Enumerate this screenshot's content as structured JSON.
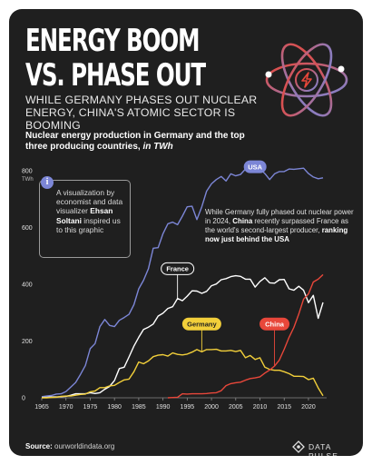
{
  "header": {
    "title_line1": "ENERGY BOOM",
    "title_line2": "VS. PHASE OUT",
    "subtitle": "WHILE GERMANY PHASES OUT NUCLEAR ENERGY, CHINA'S ATOMIC SECTOR IS BOOMING",
    "chart_heading": "Nuclear energy production in Germany and the top three producing countries,",
    "chart_heading_unit": "in TWh"
  },
  "info": {
    "icon_glyph": "i",
    "text_before": "A visualization by economist and data visualizer",
    "author": "Ehsan Soltani",
    "text_after": "inspired us to this graphic"
  },
  "annotation": {
    "text_before": "While Germany fully phased out nuclear power in 2024,",
    "china": "China",
    "text_middle": "recently surpassed France as the world's second-largest producer,",
    "emphasis": "ranking now just behind the USA"
  },
  "footer": {
    "source_label": "Source:",
    "source_text": "ourworldindata.org",
    "brand": "DATA PULSE"
  },
  "colors": {
    "background": "#1f1f1f",
    "usa": "#7c86d6",
    "france": "#ffffff",
    "germany": "#f2cf3a",
    "china": "#e8473a"
  },
  "chart_data": {
    "type": "line",
    "title": "Nuclear energy production in Germany and the top three producing countries, in TWh",
    "ylabel": "TWh",
    "xlim": [
      1965,
      2023
    ],
    "ylim": [
      0,
      800
    ],
    "x_ticks": [
      "1965",
      "1970",
      "1975",
      "1980",
      "1985",
      "1990",
      "1995",
      "2000",
      "2005",
      "2010",
      "2015",
      "2020"
    ],
    "y_ticks": [
      "0",
      "200",
      "400",
      "600",
      "800"
    ],
    "y_unit_label": "TWh",
    "grid": false,
    "series": [
      {
        "name": "USA",
        "color": "#7c86d6",
        "x": [
          1965,
          1966,
          1967,
          1968,
          1969,
          1970,
          1971,
          1972,
          1973,
          1974,
          1975,
          1976,
          1977,
          1978,
          1979,
          1980,
          1981,
          1982,
          1983,
          1984,
          1985,
          1986,
          1987,
          1988,
          1989,
          1990,
          1991,
          1992,
          1993,
          1994,
          1995,
          1996,
          1997,
          1998,
          1999,
          2000,
          2001,
          2002,
          2003,
          2004,
          2005,
          2006,
          2007,
          2008,
          2009,
          2010,
          2011,
          2012,
          2013,
          2014,
          2015,
          2016,
          2017,
          2018,
          2019,
          2020,
          2021,
          2022,
          2023
        ],
        "values": [
          4,
          6,
          8,
          13,
          14,
          22,
          38,
          54,
          83,
          114,
          173,
          191,
          251,
          276,
          255,
          251,
          273,
          283,
          294,
          328,
          384,
          414,
          455,
          527,
          529,
          578,
          613,
          619,
          610,
          640,
          673,
          675,
          628,
          673,
          728,
          754,
          769,
          780,
          764,
          789,
          782,
          787,
          806,
          806,
          799,
          807,
          790,
          769,
          789,
          797,
          797,
          806,
          805,
          807,
          809,
          790,
          778,
          772,
          775
        ]
      },
      {
        "name": "France",
        "color": "#ffffff",
        "x": [
          1965,
          1966,
          1967,
          1968,
          1969,
          1970,
          1971,
          1972,
          1973,
          1974,
          1975,
          1976,
          1977,
          1978,
          1979,
          1980,
          1981,
          1982,
          1983,
          1984,
          1985,
          1986,
          1987,
          1988,
          1989,
          1990,
          1991,
          1992,
          1993,
          1994,
          1995,
          1996,
          1997,
          1998,
          1999,
          2000,
          2001,
          2002,
          2003,
          2004,
          2005,
          2006,
          2007,
          2008,
          2009,
          2010,
          2011,
          2012,
          2013,
          2014,
          2015,
          2016,
          2017,
          2018,
          2019,
          2020,
          2021,
          2022,
          2023
        ],
        "values": [
          1,
          2,
          3,
          3,
          4,
          5,
          9,
          14,
          14,
          14,
          18,
          15,
          18,
          30,
          40,
          61,
          103,
          108,
          144,
          182,
          213,
          241,
          249,
          260,
          288,
          298,
          315,
          321,
          350,
          342,
          358,
          377,
          376,
          368,
          375,
          395,
          401,
          416,
          420,
          427,
          430,
          428,
          418,
          418,
          390,
          410,
          423,
          405,
          404,
          416,
          417,
          384,
          379,
          393,
          379,
          335,
          361,
          280,
          336
        ]
      },
      {
        "name": "Germany",
        "color": "#f2cf3a",
        "x": [
          1965,
          1966,
          1967,
          1968,
          1969,
          1970,
          1971,
          1972,
          1973,
          1974,
          1975,
          1976,
          1977,
          1978,
          1979,
          1980,
          1981,
          1982,
          1983,
          1984,
          1985,
          1986,
          1987,
          1988,
          1989,
          1990,
          1991,
          1992,
          1993,
          1994,
          1995,
          1996,
          1997,
          1998,
          1999,
          2000,
          2001,
          2002,
          2003,
          2004,
          2005,
          2006,
          2007,
          2008,
          2009,
          2010,
          2011,
          2012,
          2013,
          2014,
          2015,
          2016,
          2017,
          2018,
          2019,
          2020,
          2021,
          2022,
          2023
        ],
        "values": [
          0,
          0,
          1,
          2,
          5,
          6,
          6,
          9,
          12,
          13,
          21,
          24,
          36,
          36,
          42,
          44,
          54,
          63,
          66,
          92,
          126,
          120,
          130,
          145,
          150,
          152,
          147,
          158,
          153,
          151,
          154,
          161,
          170,
          162,
          170,
          170,
          171,
          165,
          165,
          167,
          163,
          167,
          141,
          149,
          135,
          141,
          108,
          100,
          97,
          97,
          92,
          85,
          76,
          76,
          75,
          64,
          69,
          35,
          7
        ]
      },
      {
        "name": "China",
        "color": "#e8473a",
        "x": [
          1991,
          1992,
          1993,
          1994,
          1995,
          1996,
          1997,
          1998,
          1999,
          2000,
          2001,
          2002,
          2003,
          2004,
          2005,
          2006,
          2007,
          2008,
          2009,
          2010,
          2011,
          2012,
          2013,
          2014,
          2015,
          2016,
          2017,
          2018,
          2019,
          2020,
          2021,
          2022,
          2023
        ],
        "values": [
          0,
          1,
          2,
          14,
          13,
          14,
          14,
          14,
          15,
          17,
          18,
          25,
          43,
          50,
          53,
          55,
          62,
          68,
          70,
          74,
          87,
          98,
          112,
          133,
          171,
          213,
          248,
          295,
          348,
          366,
          408,
          418,
          434
        ]
      }
    ],
    "series_labels": {
      "usa": "USA",
      "france": "France",
      "germany": "Germany",
      "china": "China"
    }
  }
}
